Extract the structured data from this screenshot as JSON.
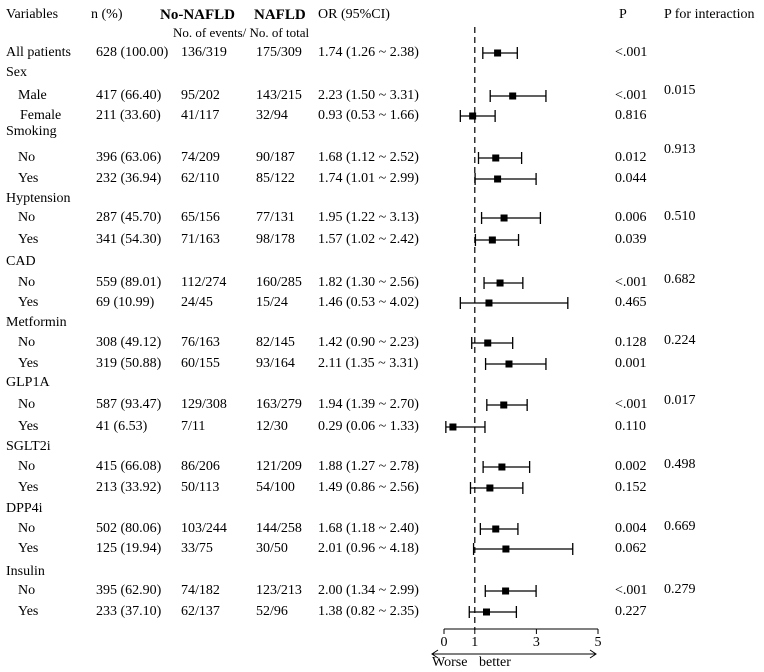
{
  "headers": {
    "variables": "Variables",
    "n_pct": "n (%)",
    "no_nafld": "No-NAFLD",
    "nafld": "NAFLD",
    "or_ci": "OR (95%CI)",
    "p": "P",
    "p_interaction": "P for interaction",
    "events_note": "No. of events/ No. of total"
  },
  "axis_labels": {
    "left": "Worse",
    "right": "better"
  },
  "chart_data": {
    "type": "forest",
    "title": "",
    "xlabel": "Worse  better",
    "ylabel": "",
    "xlim": [
      0,
      5
    ],
    "xticks": [
      0,
      1,
      3,
      5
    ],
    "xtick_labels": [
      "0",
      "1",
      "3",
      "5"
    ],
    "reference_line": 1,
    "rows": [
      {
        "kind": "row",
        "label": "All patients",
        "indent": false,
        "n": "628 (100.00)",
        "no_nafld": "136/319",
        "nafld": "175/309",
        "or_text": "1.74 (1.26 ~ 2.38)",
        "p": "<.001",
        "or": 1.74,
        "lo": 1.26,
        "hi": 2.38
      },
      {
        "kind": "group",
        "label": "Sex",
        "p_int": "0.015"
      },
      {
        "kind": "row",
        "label": "Male",
        "indent": true,
        "n": "417 (66.40)",
        "no_nafld": "95/202",
        "nafld": "143/215",
        "or_text": "2.23 (1.50 ~ 3.31)",
        "p": "<.001",
        "or": 2.23,
        "lo": 1.5,
        "hi": 3.31
      },
      {
        "kind": "row",
        "label": "Female",
        "indent": true,
        "n": "211 (33.60)",
        "no_nafld": "41/117",
        "nafld": "32/94",
        "or_text": "0.93 (0.53 ~ 1.66)",
        "p": "0.816",
        "or": 0.93,
        "lo": 0.53,
        "hi": 1.66
      },
      {
        "kind": "group",
        "label": "Smoking",
        "p_int": "0.913"
      },
      {
        "kind": "row",
        "label": "No",
        "indent": true,
        "n": "396 (63.06)",
        "no_nafld": "74/209",
        "nafld": "90/187",
        "or_text": "1.68 (1.12 ~ 2.52)",
        "p": "0.012",
        "or": 1.68,
        "lo": 1.12,
        "hi": 2.52
      },
      {
        "kind": "row",
        "label": "Yes",
        "indent": true,
        "n": "232 (36.94)",
        "no_nafld": "62/110",
        "nafld": "85/122",
        "or_text": "1.74 (1.01 ~ 2.99)",
        "p": "0.044",
        "or": 1.74,
        "lo": 1.01,
        "hi": 2.99
      },
      {
        "kind": "group",
        "label": "Hyptension",
        "p_int": "0.510"
      },
      {
        "kind": "row",
        "label": "No",
        "indent": true,
        "n": "287 (45.70)",
        "no_nafld": "65/156",
        "nafld": "77/131",
        "or_text": "1.95 (1.22 ~ 3.13)",
        "p": "0.006",
        "or": 1.95,
        "lo": 1.22,
        "hi": 3.13
      },
      {
        "kind": "row",
        "label": "Yes",
        "indent": true,
        "n": "341 (54.30)",
        "no_nafld": "71/163",
        "nafld": "98/178",
        "or_text": "1.57 (1.02 ~ 2.42)",
        "p": "0.039",
        "or": 1.57,
        "lo": 1.02,
        "hi": 2.42
      },
      {
        "kind": "group",
        "label": "CAD",
        "p_int": "0.682"
      },
      {
        "kind": "row",
        "label": "No",
        "indent": true,
        "n": "559 (89.01)",
        "no_nafld": "112/274",
        "nafld": "160/285",
        "or_text": "1.82 (1.30 ~ 2.56)",
        "p": "<.001",
        "or": 1.82,
        "lo": 1.3,
        "hi": 2.56
      },
      {
        "kind": "row",
        "label": "Yes",
        "indent": true,
        "n": "69 (10.99)",
        "no_nafld": "24/45",
        "nafld": "15/24",
        "or_text": "1.46 (0.53 ~ 4.02)",
        "p": "0.465",
        "or": 1.46,
        "lo": 0.53,
        "hi": 4.02
      },
      {
        "kind": "group",
        "label": "Metformin",
        "p_int": "0.224"
      },
      {
        "kind": "row",
        "label": "No",
        "indent": true,
        "n": "308 (49.12)",
        "no_nafld": "76/163",
        "nafld": "82/145",
        "or_text": "1.42 (0.90 ~ 2.23)",
        "p": "0.128",
        "or": 1.42,
        "lo": 0.9,
        "hi": 2.23
      },
      {
        "kind": "row",
        "label": "Yes",
        "indent": true,
        "n": "319 (50.88)",
        "no_nafld": "60/155",
        "nafld": "93/164",
        "or_text": "2.11 (1.35 ~ 3.31)",
        "p": "0.001",
        "or": 2.11,
        "lo": 1.35,
        "hi": 3.31
      },
      {
        "kind": "group",
        "label": "GLP1A",
        "p_int": "0.017"
      },
      {
        "kind": "row",
        "label": "No",
        "indent": true,
        "n": "587 (93.47)",
        "no_nafld": "129/308",
        "nafld": "163/279",
        "or_text": "1.94 (1.39 ~ 2.70)",
        "p": "<.001",
        "or": 1.94,
        "lo": 1.39,
        "hi": 2.7
      },
      {
        "kind": "row",
        "label": "Yes",
        "indent": true,
        "n": "41 (6.53)",
        "no_nafld": "7/11",
        "nafld": "12/30",
        "or_text": "0.29 (0.06 ~ 1.33)",
        "p": "0.110",
        "or": 0.29,
        "lo": 0.06,
        "hi": 1.33
      },
      {
        "kind": "group",
        "label": "SGLT2i",
        "p_int": "0.498"
      },
      {
        "kind": "row",
        "label": "No",
        "indent": true,
        "n": "415 (66.08)",
        "no_nafld": "86/206",
        "nafld": "121/209",
        "or_text": "1.88 (1.27 ~ 2.78)",
        "p": "0.002",
        "or": 1.88,
        "lo": 1.27,
        "hi": 2.78
      },
      {
        "kind": "row",
        "label": "Yes",
        "indent": true,
        "n": "213 (33.92)",
        "no_nafld": "50/113",
        "nafld": "54/100",
        "or_text": "1.49 (0.86 ~ 2.56)",
        "p": "0.152",
        "or": 1.49,
        "lo": 0.86,
        "hi": 2.56
      },
      {
        "kind": "group",
        "label": "DPP4i",
        "p_int": "0.669"
      },
      {
        "kind": "row",
        "label": "No",
        "indent": true,
        "n": "502 (80.06)",
        "no_nafld": "103/244",
        "nafld": "144/258",
        "or_text": "1.68 (1.18 ~ 2.40)",
        "p": "0.004",
        "or": 1.68,
        "lo": 1.18,
        "hi": 2.4
      },
      {
        "kind": "row",
        "label": "Yes",
        "indent": true,
        "n": "125 (19.94)",
        "no_nafld": "33/75",
        "nafld": "30/50",
        "or_text": "2.01 (0.96 ~ 4.18)",
        "p": "0.062",
        "or": 2.01,
        "lo": 0.96,
        "hi": 4.18
      },
      {
        "kind": "group",
        "label": "Insulin",
        "p_int": "0.279"
      },
      {
        "kind": "row",
        "label": "No",
        "indent": true,
        "n": "395 (62.90)",
        "no_nafld": "74/182",
        "nafld": "123/213",
        "or_text": "2.00 (1.34 ~ 2.99)",
        "p": "<.001",
        "or": 2.0,
        "lo": 1.34,
        "hi": 2.99
      },
      {
        "kind": "row",
        "label": "Yes",
        "indent": true,
        "n": "233 (37.10)",
        "no_nafld": "62/137",
        "nafld": "52/96",
        "or_text": "1.38 (0.82 ~ 2.35)",
        "p": "0.227",
        "or": 1.38,
        "lo": 0.82,
        "hi": 2.35
      }
    ]
  }
}
